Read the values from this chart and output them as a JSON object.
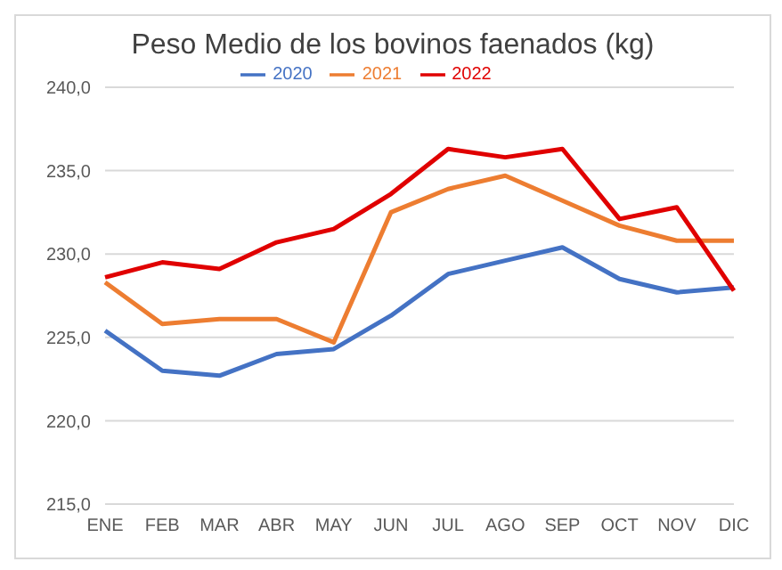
{
  "chart_data": {
    "type": "line",
    "title": "Peso Medio de los bovinos faenados (kg)",
    "categories": [
      "ENE",
      "FEB",
      "MAR",
      "ABR",
      "MAY",
      "JUN",
      "JUL",
      "AGO",
      "SEP",
      "OCT",
      "NOV",
      "DIC"
    ],
    "series": [
      {
        "name": "2020",
        "color": "#4472c4",
        "values": [
          225.4,
          223.0,
          222.7,
          224.0,
          224.3,
          226.3,
          228.8,
          229.6,
          230.4,
          228.5,
          227.7,
          228.0
        ]
      },
      {
        "name": "2021",
        "color": "#ed7d31",
        "values": [
          228.3,
          225.8,
          226.1,
          226.1,
          224.7,
          232.5,
          233.9,
          234.7,
          233.2,
          231.7,
          230.8,
          230.8
        ]
      },
      {
        "name": "2022",
        "color": "#e00000",
        "values": [
          228.6,
          229.5,
          229.1,
          230.7,
          231.5,
          233.6,
          236.3,
          235.8,
          236.3,
          232.1,
          232.8,
          227.8
        ]
      }
    ],
    "ylim": [
      215,
      240
    ],
    "yticks": [
      {
        "value": 215,
        "label": "215,0"
      },
      {
        "value": 220,
        "label": "220,0"
      },
      {
        "value": 225,
        "label": "225,0"
      },
      {
        "value": 230,
        "label": "230,0"
      },
      {
        "value": 235,
        "label": "235,0"
      },
      {
        "value": 240,
        "label": "240,0"
      }
    ],
    "grid": "y",
    "legend": "top",
    "marker": "none",
    "line_style": "solid"
  }
}
